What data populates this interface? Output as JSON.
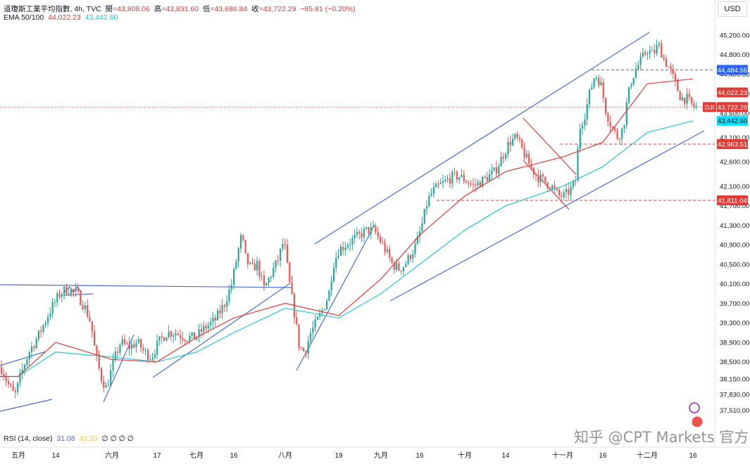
{
  "header": {
    "symbol_line": "道瓊斯工業平均指數, 4h, TVC",
    "open_label": "開",
    "open": "=43,808.06",
    "high_label": "高",
    "high": "=43,831.60",
    "low_label": "低",
    "low": "=43,686.84",
    "close_label": "收",
    "close": "=43,722.29",
    "change": "−85.81 (−0.20%)",
    "ema_label": "EMA 50/100",
    "ema50": "44,022.23",
    "ema100": "43,442.60"
  },
  "currency": "USD",
  "rsi": {
    "label": "RSI (14, close)",
    "v1": "31.08",
    "v2": "43.33",
    "rest": "∅ ∅ ∅ ∅"
  },
  "watermark": "知乎 @CPT Markets 官方",
  "colors": {
    "up": "#26a69a",
    "down": "#ef5350",
    "ema50": "#e53935",
    "ema100": "#26c6da",
    "trend_blue": "#4a6cd4",
    "trend_red": "#e53935",
    "badge_blue": "#2962ff",
    "badge_red": "#e53935",
    "badge_cyan": "#00e5ff"
  },
  "chart_data": {
    "type": "candlestick",
    "timeframe": "4h",
    "ylim": [
      37300,
      45600
    ],
    "y_ticks": [
      45200,
      44800,
      44400,
      44000,
      43600,
      43100,
      42600,
      42100,
      41700,
      41300,
      40900,
      40500,
      40100,
      39700,
      39300,
      38900,
      38500,
      38150,
      37830,
      37510
    ],
    "y_tick_labels": [
      "45,200.00",
      "44,800.00",
      "44,400.00",
      "44,000.00",
      "43,600.00",
      "43,100.00",
      "42,600.00",
      "42,100.00",
      "41,700.00",
      "41,300.00",
      "40,900.00",
      "40,500.00",
      "40,100.00",
      "39,700.00",
      "39,300.00",
      "38,900.00",
      "38,500.00",
      "38,150.00",
      "37,830.00",
      "37,510.00"
    ],
    "x_labels": [
      "五月",
      "14",
      "六月",
      "17",
      "七月",
      "16",
      "八月",
      "19",
      "九月",
      "16",
      "十月",
      "14",
      "十一月",
      "16",
      "十二月",
      "16"
    ],
    "badges": [
      {
        "label": "44,484.56",
        "value": 44484.56,
        "style": "blue"
      },
      {
        "label": "44,022.23",
        "value": 44022.23,
        "style": "red"
      },
      {
        "label": "43,722.29",
        "value": 43722.29,
        "style": "red",
        "tag": "DJI"
      },
      {
        "label": "43,442.60",
        "value": 43442.6,
        "style": "cyan"
      },
      {
        "label": "42,963.51",
        "value": 42963.51,
        "style": "red"
      },
      {
        "label": "41,811.04",
        "value": 41811.04,
        "style": "red"
      }
    ],
    "horizontal_lines": [
      {
        "value": 44484.56,
        "color": "blue",
        "dash": true
      },
      {
        "value": 43722.29,
        "color": "red",
        "dotted": true
      },
      {
        "value": 42963.51,
        "color": "red",
        "dash": true
      },
      {
        "value": 41811.04,
        "color": "red",
        "dash": true
      }
    ],
    "series": [
      {
        "name": "EMA 50",
        "values_at_x_labels": [
          38200,
          38900,
          38550,
          38500,
          39000,
          39400,
          39700,
          39450,
          40200,
          41100,
          41900,
          42400,
          42700,
          43000,
          44200,
          44300
        ]
      },
      {
        "name": "EMA 100",
        "values_at_x_labels": [
          38200,
          38700,
          38600,
          38500,
          38700,
          39100,
          39600,
          39400,
          39900,
          40500,
          41200,
          41700,
          42100,
          42500,
          43200,
          43442
        ]
      }
    ],
    "close_path": [
      [
        0,
        38400
      ],
      [
        6,
        38200
      ],
      [
        12,
        38000
      ],
      [
        20,
        37800
      ],
      [
        30,
        38300
      ],
      [
        40,
        38700
      ],
      [
        52,
        39000
      ],
      [
        62,
        39300
      ],
      [
        72,
        39600
      ],
      [
        84,
        39900
      ],
      [
        95,
        40000
      ],
      [
        108,
        39900
      ],
      [
        120,
        39600
      ],
      [
        128,
        39300
      ],
      [
        134,
        38700
      ],
      [
        142,
        38200
      ],
      [
        150,
        37950
      ],
      [
        160,
        38500
      ],
      [
        170,
        38900
      ],
      [
        182,
        38800
      ],
      [
        194,
        38900
      ],
      [
        204,
        38700
      ],
      [
        214,
        38600
      ],
      [
        224,
        38900
      ],
      [
        236,
        39100
      ],
      [
        248,
        39100
      ],
      [
        262,
        39000
      ],
      [
        276,
        39000
      ],
      [
        290,
        39200
      ],
      [
        304,
        39350
      ],
      [
        318,
        39700
      ],
      [
        328,
        40100
      ],
      [
        336,
        40700
      ],
      [
        342,
        41100
      ],
      [
        348,
        40600
      ],
      [
        356,
        40400
      ],
      [
        364,
        40500
      ],
      [
        374,
        40000
      ],
      [
        384,
        40300
      ],
      [
        394,
        40600
      ],
      [
        402,
        41000
      ],
      [
        410,
        40100
      ],
      [
        418,
        39400
      ],
      [
        424,
        38800
      ],
      [
        432,
        38700
      ],
      [
        440,
        39100
      ],
      [
        448,
        39300
      ],
      [
        458,
        39600
      ],
      [
        466,
        39900
      ],
      [
        472,
        40500
      ],
      [
        480,
        40800
      ],
      [
        490,
        40900
      ],
      [
        500,
        41000
      ],
      [
        510,
        41100
      ],
      [
        520,
        41200
      ],
      [
        530,
        41200
      ],
      [
        538,
        41000
      ],
      [
        546,
        40800
      ],
      [
        556,
        40500
      ],
      [
        566,
        40400
      ],
      [
        574,
        40500
      ],
      [
        582,
        40700
      ],
      [
        590,
        40900
      ],
      [
        598,
        41300
      ],
      [
        606,
        41800
      ],
      [
        614,
        42000
      ],
      [
        622,
        42100
      ],
      [
        632,
        42200
      ],
      [
        642,
        42300
      ],
      [
        652,
        42300
      ],
      [
        662,
        42200
      ],
      [
        672,
        42100
      ],
      [
        682,
        42200
      ],
      [
        692,
        42300
      ],
      [
        702,
        42400
      ],
      [
        712,
        42700
      ],
      [
        722,
        43000
      ],
      [
        732,
        43100
      ],
      [
        742,
        42800
      ],
      [
        752,
        42500
      ],
      [
        762,
        42300
      ],
      [
        772,
        42200
      ],
      [
        782,
        42100
      ],
      [
        792,
        41900
      ],
      [
        800,
        41900
      ],
      [
        808,
        42000
      ],
      [
        816,
        42200
      ],
      [
        822,
        43300
      ],
      [
        830,
        43600
      ],
      [
        836,
        44000
      ],
      [
        844,
        44400
      ],
      [
        852,
        44200
      ],
      [
        860,
        43600
      ],
      [
        868,
        43300
      ],
      [
        876,
        43100
      ],
      [
        884,
        43300
      ],
      [
        890,
        43900
      ],
      [
        896,
        44300
      ],
      [
        902,
        44500
      ],
      [
        910,
        44700
      ],
      [
        918,
        44900
      ],
      [
        926,
        44800
      ],
      [
        934,
        45000
      ],
      [
        942,
        44700
      ],
      [
        950,
        44500
      ],
      [
        958,
        44200
      ],
      [
        966,
        43900
      ],
      [
        974,
        43900
      ],
      [
        982,
        43750
      ],
      [
        988,
        43722
      ]
    ]
  }
}
